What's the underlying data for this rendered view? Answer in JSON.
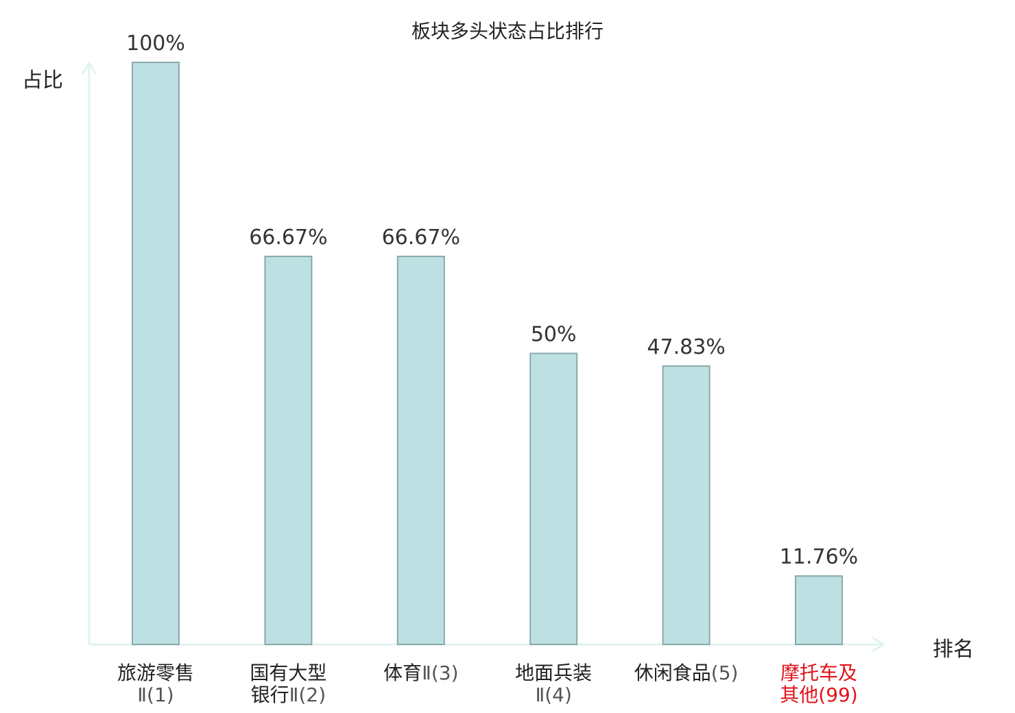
{
  "chart_data": {
    "type": "bar",
    "title": "板块多头状态占比排行",
    "ylabel": "占比",
    "xlabel": "排名",
    "ylim": [
      0,
      100
    ],
    "grid": false,
    "categories": [
      {
        "name": "旅游零售",
        "rank": "Ⅱ(1)"
      },
      {
        "name": "国有大型银行",
        "rank": "Ⅱ(2)"
      },
      {
        "name": "体育",
        "rank": "Ⅱ(3)"
      },
      {
        "name": "地面兵装",
        "rank": "Ⅱ(4)"
      },
      {
        "name": "休闲食品",
        "rank": "(5)"
      },
      {
        "name": "摩托车及其他",
        "rank": "(99)"
      }
    ],
    "values": [
      100,
      66.67,
      66.67,
      50,
      47.83,
      11.76
    ],
    "value_labels": [
      "100%",
      "66.67%",
      "66.67%",
      "50%",
      "47.83%",
      "11.76%"
    ],
    "highlight_index": 5,
    "colors": {
      "bar_fill": "#bde0e3",
      "bar_stroke": "#8aa9ab",
      "axis": "#e0f3f1",
      "highlight_text": "#e0121b",
      "value_text": "#333333"
    }
  }
}
